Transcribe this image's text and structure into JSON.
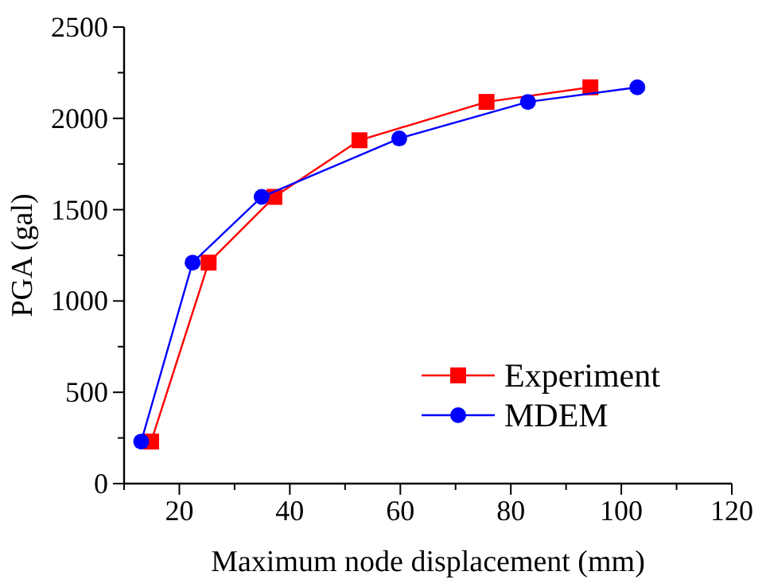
{
  "chart_data": {
    "type": "line",
    "xlabel": "Maximum node displacement (mm)",
    "ylabel": "PGA (gal)",
    "xlim": [
      10,
      120
    ],
    "xticks": [
      {
        "value": 10,
        "label": null
      },
      20,
      {
        "value": 30,
        "label": null
      },
      40,
      {
        "value": 50,
        "label": null
      },
      60,
      {
        "value": 70,
        "label": null
      },
      80,
      {
        "value": 90,
        "label": null
      },
      100,
      {
        "value": 110,
        "label": null
      },
      120
    ],
    "ylim": [
      0,
      2500
    ],
    "yticks": [
      0,
      {
        "value": 250,
        "label": null
      },
      500,
      {
        "value": 750,
        "label": null
      },
      1000,
      {
        "value": 1250,
        "label": null
      },
      1500,
      {
        "value": 1750,
        "label": null
      },
      2000,
      {
        "value": 2250,
        "label": null
      },
      2500
    ],
    "grid": false,
    "legend": "bottom right",
    "line_style": "solid",
    "series": [
      {
        "name": "Experiment",
        "color": "#ff0000",
        "marker": "square",
        "x": [
          14.9,
          25.3,
          37.2,
          52.6,
          75.6,
          94.4
        ],
        "values": [
          230,
          1210,
          1570,
          1880,
          2090,
          2170
        ]
      },
      {
        "name": "MDEM",
        "color": "#0000ff",
        "marker": "circle",
        "x": [
          13.1,
          22.4,
          34.9,
          59.8,
          83.1,
          102.9
        ],
        "values": [
          230,
          1210,
          1570,
          1890,
          2090,
          2170
        ]
      }
    ]
  }
}
